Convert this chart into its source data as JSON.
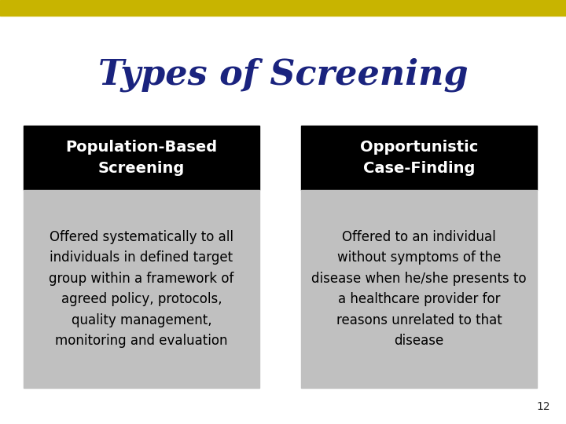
{
  "title": "Types of Screening",
  "title_color": "#1a237e",
  "title_fontsize": 32,
  "background_color": "#ffffff",
  "top_bar_color": "#c8b400",
  "box1_header": "Population-Based\nScreening",
  "box2_header": "Opportunistic\nCase-Finding",
  "header_bg_color": "#000000",
  "header_text_color": "#ffffff",
  "body_bg_color": "#c0c0c0",
  "body_text_color": "#000000",
  "box1_body": "Offered systematically to all\nindividuals in defined target\ngroup within a framework of\nagreed policy, protocols,\nquality management,\nmonitoring and evaluation",
  "box2_body": "Offered to an individual\nwithout symptoms of the\ndisease when he/she presents to\na healthcare provider for\nreasons unrelated to that\ndisease",
  "page_number": "12",
  "header_fontsize": 14,
  "body_fontsize": 12
}
